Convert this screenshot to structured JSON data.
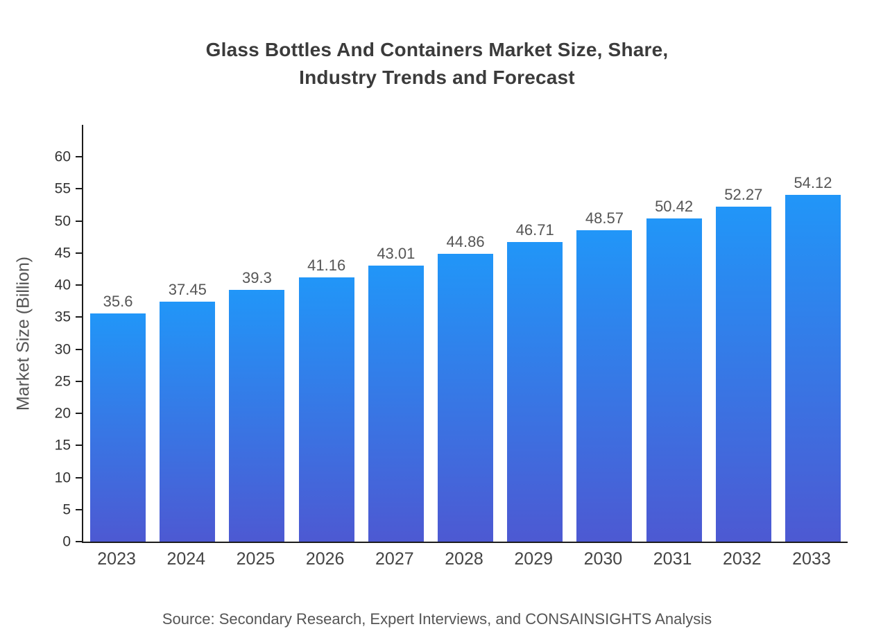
{
  "page": {
    "title": "Glass Bottles And Containers Market Size, Share,\nIndustry Trends and Forecast",
    "source": "Source: Secondary Research, Expert Interviews, and CONSAINSIGHTS Analysis"
  },
  "chart_data": {
    "type": "bar",
    "title": "Glass Bottles And Containers Market Size, Share, Industry Trends and Forecast",
    "categories": [
      "2023",
      "2024",
      "2025",
      "2026",
      "2027",
      "2028",
      "2029",
      "2030",
      "2031",
      "2032",
      "2033"
    ],
    "values": [
      35.6,
      37.45,
      39.3,
      41.16,
      43.01,
      44.86,
      46.71,
      48.57,
      50.42,
      52.27,
      54.12
    ],
    "value_labels": [
      "35.6",
      "37.45",
      "39.3",
      "41.16",
      "43.01",
      "44.86",
      "46.71",
      "48.57",
      "50.42",
      "52.27",
      "54.12"
    ],
    "xlabel": "",
    "ylabel": "Market Size (Billion)",
    "ylim": [
      0,
      65
    ],
    "yticks": [
      0,
      5,
      10,
      15,
      20,
      25,
      30,
      35,
      40,
      45,
      50,
      55,
      60
    ],
    "grid": false,
    "legend": false,
    "bar_gradient_top": "#2196f8",
    "bar_gradient_bottom": "#4d59d2",
    "value_label_color": "#555555",
    "axis_color": "#1c1c1c",
    "source": "Source: Secondary Research, Expert Interviews, and CONSAINSIGHTS Analysis"
  }
}
